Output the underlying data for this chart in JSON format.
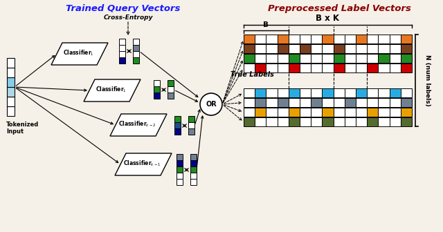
{
  "title_left": "Trained Query Vectors",
  "title_right": "Preprocessed Label Vectors",
  "title_left_color": "#1a1aff",
  "title_right_color": "#8B0000",
  "bg_color": "#f5f0e8",
  "label_rows": [
    {
      "color": "#E87722",
      "positions": [
        0,
        3,
        7,
        10,
        14
      ]
    },
    {
      "color": "#7B3F1E",
      "positions": [
        0,
        3,
        5,
        8,
        14
      ]
    },
    {
      "color": "#228B22",
      "positions": [
        0,
        4,
        8,
        12,
        14
      ]
    },
    {
      "color": "#CC0000",
      "positions": [
        1,
        4,
        8,
        11,
        14
      ]
    },
    {
      "color": "#29ABE2",
      "positions": [
        1,
        4,
        7,
        10,
        13
      ]
    },
    {
      "color": "#708090",
      "positions": [
        1,
        3,
        6,
        9,
        14
      ]
    },
    {
      "color": "#E8A000",
      "positions": [
        1,
        4,
        7,
        11,
        14
      ]
    },
    {
      "color": "#556B2F",
      "positions": [
        0,
        4,
        7,
        11,
        14
      ]
    }
  ],
  "num_cells": 15,
  "cross_entropy_label": "Cross-Entropy",
  "true_labels_label": "True Labels",
  "bxk_label": "B x K",
  "b_label": "B",
  "n_label": "N (num labels)",
  "tokenized_label": "Tokenized\nInput",
  "tokenized_colors": [
    "white",
    "white",
    "#ADD8E6",
    "#87CEEB",
    "white",
    "white"
  ],
  "clf_labels": [
    "Classifier$_1$",
    "Classifier$_1$",
    "Classifier$_{k-2}$",
    "Classifier$_{k-1}$"
  ],
  "or_label": "OR"
}
